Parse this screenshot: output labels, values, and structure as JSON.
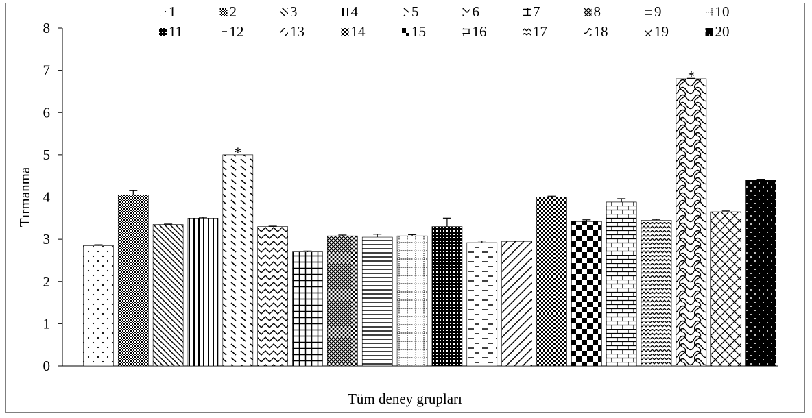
{
  "chart_data": {
    "type": "bar",
    "title": "",
    "xlabel": "Tüm deney grupları",
    "ylabel": "Tırmanma",
    "ylim": [
      0,
      8
    ],
    "yticks": [
      0,
      1,
      2,
      3,
      4,
      5,
      6,
      7,
      8
    ],
    "grid": false,
    "legend_position": "top",
    "categories": [
      "1",
      "2",
      "3",
      "4",
      "5",
      "6",
      "7",
      "8",
      "9",
      "10",
      "11",
      "12",
      "13",
      "14",
      "15",
      "16",
      "17",
      "18",
      "19",
      "20"
    ],
    "values": [
      2.85,
      4.05,
      3.35,
      3.5,
      5.0,
      3.3,
      2.7,
      3.08,
      3.05,
      3.08,
      3.3,
      2.92,
      2.95,
      4.0,
      3.42,
      3.88,
      3.45,
      6.8,
      3.65,
      4.4
    ],
    "errors": [
      0.02,
      0.1,
      0.01,
      0.02,
      0.0,
      0.01,
      0.02,
      0.02,
      0.07,
      0.03,
      0.2,
      0.04,
      0.01,
      0.02,
      0.04,
      0.08,
      0.02,
      0.01,
      0.02,
      0.02
    ],
    "significance_marks": [
      {
        "category": "5",
        "label": "*"
      },
      {
        "category": "18",
        "label": "*"
      }
    ]
  }
}
